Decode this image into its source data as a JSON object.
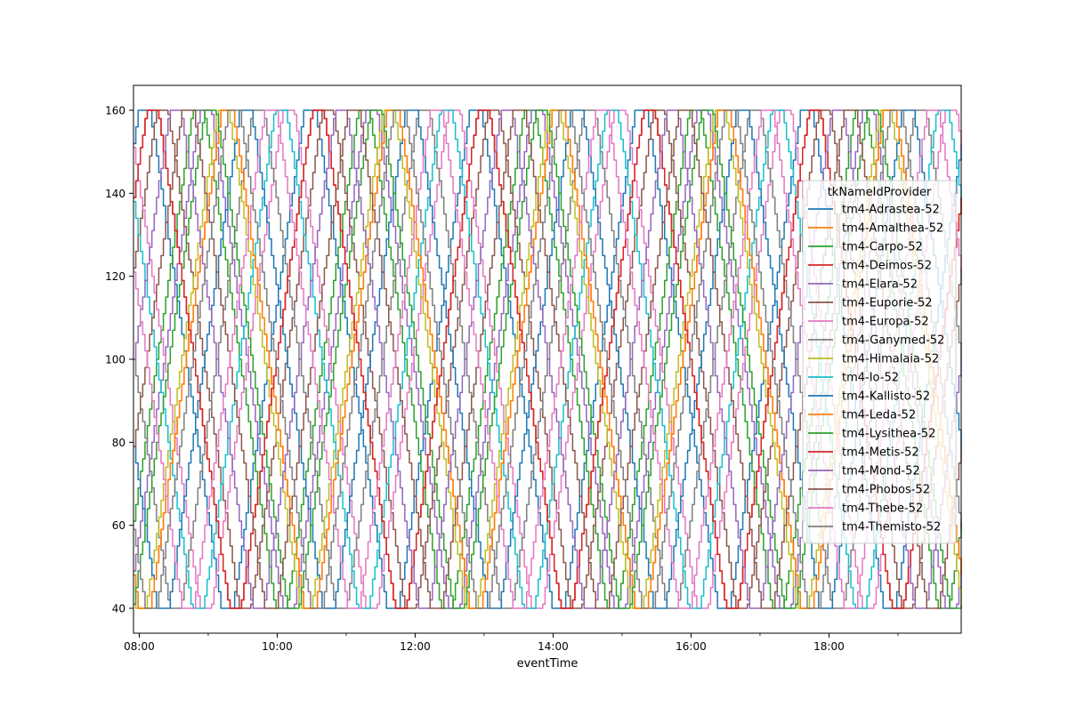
{
  "chart_data": {
    "type": "line",
    "title": "",
    "xlabel": "eventTime",
    "ylabel": "",
    "x_range": [
      "07:55",
      "19:55"
    ],
    "ylim": [
      34,
      166
    ],
    "xticks": [
      "08:00",
      "10:00",
      "12:00",
      "14:00",
      "16:00",
      "18:00"
    ],
    "yticks": [
      40,
      60,
      80,
      100,
      120,
      140,
      160
    ],
    "grid": false,
    "legend": {
      "title": "tkNameIdProvider",
      "placement": "center-right"
    },
    "signal": {
      "shape": "triangle wave with flat plateaus at min and max",
      "min": 40,
      "max": 160,
      "period_minutes": 144,
      "plateau_minutes": 10,
      "sample_step_minutes": 2
    },
    "series": [
      {
        "name": "tm4-Adrastea-52",
        "color": "#1f77b4",
        "value_at_start": 152,
        "direction_at_start": "up"
      },
      {
        "name": "tm4-Amalthea-52",
        "color": "#ff7f0e",
        "value_at_start": 48,
        "direction_at_start": "down"
      },
      {
        "name": "tm4-Carpo-52",
        "color": "#2ca02c",
        "value_at_start": 61,
        "direction_at_start": "up"
      },
      {
        "name": "tm4-Deimos-52",
        "color": "#d62728",
        "value_at_start": 139,
        "direction_at_start": "up"
      },
      {
        "name": "tm4-Elara-52",
        "color": "#9467bd",
        "value_at_start": 49,
        "direction_at_start": "up"
      },
      {
        "name": "tm4-Euporie-52",
        "color": "#8c564b",
        "value_at_start": 122,
        "direction_at_start": "up"
      },
      {
        "name": "tm4-Europa-52",
        "color": "#e377c2",
        "value_at_start": 151,
        "direction_at_start": "down"
      },
      {
        "name": "tm4-Ganymed-52",
        "color": "#7f7f7f",
        "value_at_start": 100,
        "direction_at_start": "down"
      },
      {
        "name": "tm4-Himalaia-52",
        "color": "#bcbd22",
        "value_at_start": 41,
        "direction_at_start": "down"
      },
      {
        "name": "tm4-Io-52",
        "color": "#17becf",
        "value_at_start": 138,
        "direction_at_start": "down"
      },
      {
        "name": "tm4-Kallisto-52",
        "color": "#1f77b4",
        "value_at_start": 79,
        "direction_at_start": "down"
      },
      {
        "name": "tm4-Leda-52",
        "color": "#ff7f0e",
        "value_at_start": 48,
        "direction_at_start": "down"
      },
      {
        "name": "tm4-Lysithea-52",
        "color": "#2ca02c",
        "value_at_start": 41,
        "direction_at_start": "up"
      },
      {
        "name": "tm4-Metis-52",
        "color": "#d62728",
        "value_at_start": 139,
        "direction_at_start": "up"
      },
      {
        "name": "tm4-Mond-52",
        "color": "#9467bd",
        "value_at_start": 100,
        "direction_at_start": "up"
      },
      {
        "name": "tm4-Phobos-52",
        "color": "#8c564b",
        "value_at_start": 79,
        "direction_at_start": "up"
      },
      {
        "name": "tm4-Thebe-52",
        "color": "#e377c2",
        "value_at_start": 121,
        "direction_at_start": "down"
      },
      {
        "name": "tm4-Themisto-52",
        "color": "#7f7f7f",
        "value_at_start": 59,
        "direction_at_start": "down"
      }
    ]
  }
}
